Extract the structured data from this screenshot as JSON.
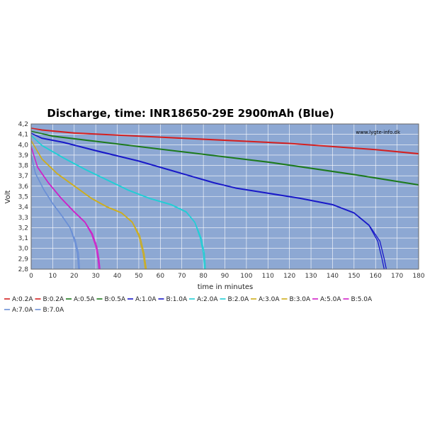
{
  "chart_data": {
    "type": "line",
    "title": "Discharge, time:  INR18650-29E 2900mAh (Blue)",
    "xlabel": "time in minutes",
    "ylabel": "Volt",
    "watermark": "www.lygte-info.dk",
    "xlim": [
      0,
      180
    ],
    "ylim": [
      2.8,
      4.2
    ],
    "xticks": [
      "0",
      "10",
      "20",
      "30",
      "40",
      "50",
      "60",
      "70",
      "80",
      "90",
      "100",
      "110",
      "120",
      "130",
      "140",
      "150",
      "160",
      "170",
      "180"
    ],
    "yticks": [
      "2,8",
      "2,9",
      "3,0",
      "3,1",
      "3,2",
      "3,3",
      "3,4",
      "3,5",
      "3,6",
      "3,7",
      "3,8",
      "3,9",
      "4,0",
      "4,1",
      "4,2"
    ],
    "grid": true,
    "legend_position": "bottom",
    "colors": {
      "plot_bg": "#8da8d3",
      "grid": "#ffffff",
      "red": "#d42020",
      "green": "#1d7a1d",
      "blue": "#1818c8",
      "cyan": "#20cfd5",
      "gold": "#cfae1a",
      "magenta": "#d020c8",
      "lightblue": "#6a8fd6"
    },
    "series": [
      {
        "name": "A:0.2A",
        "color": "#d42020",
        "points": [
          [
            0,
            4.16
          ],
          [
            5,
            4.14
          ],
          [
            20,
            4.11
          ],
          [
            40,
            4.09
          ],
          [
            60,
            4.07
          ],
          [
            80,
            4.05
          ],
          [
            100,
            4.03
          ],
          [
            120,
            4.01
          ],
          [
            140,
            3.98
          ],
          [
            160,
            3.95
          ],
          [
            180,
            3.91
          ]
        ]
      },
      {
        "name": "B:0.2A",
        "color": "#d42020",
        "points": [
          [
            0,
            4.16
          ],
          [
            5,
            4.145
          ],
          [
            20,
            4.115
          ],
          [
            40,
            4.095
          ],
          [
            60,
            4.075
          ],
          [
            80,
            4.055
          ],
          [
            100,
            4.035
          ],
          [
            120,
            4.015
          ],
          [
            140,
            3.985
          ],
          [
            160,
            3.955
          ],
          [
            180,
            3.915
          ]
        ]
      },
      {
        "name": "A:0.5A",
        "color": "#1d7a1d",
        "points": [
          [
            0,
            4.13
          ],
          [
            10,
            4.08
          ],
          [
            30,
            4.03
          ],
          [
            50,
            3.98
          ],
          [
            70,
            3.93
          ],
          [
            90,
            3.88
          ],
          [
            110,
            3.83
          ],
          [
            130,
            3.77
          ],
          [
            150,
            3.71
          ],
          [
            165,
            3.66
          ],
          [
            180,
            3.61
          ]
        ]
      },
      {
        "name": "B:0.5A",
        "color": "#1d7a1d",
        "points": [
          [
            0,
            4.13
          ],
          [
            10,
            4.085
          ],
          [
            30,
            4.035
          ],
          [
            50,
            3.985
          ],
          [
            70,
            3.935
          ],
          [
            90,
            3.885
          ],
          [
            110,
            3.835
          ],
          [
            130,
            3.775
          ],
          [
            150,
            3.715
          ],
          [
            165,
            3.665
          ],
          [
            180,
            3.615
          ]
        ]
      },
      {
        "name": "A:1.0A",
        "color": "#1818c8",
        "points": [
          [
            0,
            4.11
          ],
          [
            5,
            4.06
          ],
          [
            15,
            4.02
          ],
          [
            30,
            3.94
          ],
          [
            50,
            3.84
          ],
          [
            70,
            3.72
          ],
          [
            85,
            3.63
          ],
          [
            95,
            3.58
          ],
          [
            110,
            3.53
          ],
          [
            125,
            3.48
          ],
          [
            140,
            3.42
          ],
          [
            150,
            3.34
          ],
          [
            157,
            3.22
          ],
          [
            161,
            3.07
          ],
          [
            163,
            2.9
          ],
          [
            164,
            2.8
          ]
        ]
      },
      {
        "name": "B:1.0A",
        "color": "#1818c8",
        "points": [
          [
            0,
            4.11
          ],
          [
            5,
            4.065
          ],
          [
            15,
            4.025
          ],
          [
            30,
            3.945
          ],
          [
            50,
            3.845
          ],
          [
            70,
            3.725
          ],
          [
            85,
            3.635
          ],
          [
            95,
            3.585
          ],
          [
            110,
            3.535
          ],
          [
            125,
            3.485
          ],
          [
            140,
            3.425
          ],
          [
            150,
            3.345
          ],
          [
            157,
            3.225
          ],
          [
            162,
            3.07
          ],
          [
            164,
            2.9
          ],
          [
            165,
            2.8
          ]
        ]
      },
      {
        "name": "A:2.0A",
        "color": "#20cfd5",
        "points": [
          [
            0,
            4.09
          ],
          [
            5,
            3.99
          ],
          [
            15,
            3.87
          ],
          [
            25,
            3.76
          ],
          [
            35,
            3.66
          ],
          [
            45,
            3.56
          ],
          [
            55,
            3.48
          ],
          [
            65,
            3.42
          ],
          [
            72,
            3.35
          ],
          [
            76,
            3.25
          ],
          [
            78.5,
            3.1
          ],
          [
            80,
            2.95
          ],
          [
            80.5,
            2.8
          ]
        ]
      },
      {
        "name": "B:2.0A",
        "color": "#20cfd5",
        "points": [
          [
            0,
            4.09
          ],
          [
            5,
            3.995
          ],
          [
            15,
            3.875
          ],
          [
            25,
            3.765
          ],
          [
            35,
            3.665
          ],
          [
            45,
            3.565
          ],
          [
            55,
            3.485
          ],
          [
            65,
            3.425
          ],
          [
            72,
            3.355
          ],
          [
            76,
            3.255
          ],
          [
            79,
            3.1
          ],
          [
            80.5,
            2.95
          ],
          [
            81,
            2.8
          ]
        ]
      },
      {
        "name": "A:3.0A",
        "color": "#cfae1a",
        "points": [
          [
            0,
            4.04
          ],
          [
            5,
            3.86
          ],
          [
            12,
            3.72
          ],
          [
            20,
            3.6
          ],
          [
            28,
            3.48
          ],
          [
            35,
            3.4
          ],
          [
            42,
            3.34
          ],
          [
            47,
            3.25
          ],
          [
            50,
            3.12
          ],
          [
            52,
            2.95
          ],
          [
            53,
            2.8
          ]
        ]
      },
      {
        "name": "B:3.0A",
        "color": "#cfae1a",
        "points": [
          [
            0,
            4.04
          ],
          [
            5,
            3.865
          ],
          [
            12,
            3.725
          ],
          [
            20,
            3.605
          ],
          [
            28,
            3.485
          ],
          [
            35,
            3.405
          ],
          [
            42,
            3.345
          ],
          [
            47,
            3.255
          ],
          [
            50.5,
            3.12
          ],
          [
            52.5,
            2.95
          ],
          [
            53.5,
            2.8
          ]
        ]
      },
      {
        "name": "A:5.0A",
        "color": "#d020c8",
        "points": [
          [
            0,
            3.98
          ],
          [
            3,
            3.78
          ],
          [
            8,
            3.63
          ],
          [
            14,
            3.48
          ],
          [
            20,
            3.35
          ],
          [
            25,
            3.25
          ],
          [
            28,
            3.14
          ],
          [
            30,
            3.02
          ],
          [
            31,
            2.9
          ],
          [
            31.5,
            2.8
          ]
        ]
      },
      {
        "name": "B:5.0A",
        "color": "#d020c8",
        "points": [
          [
            0,
            3.98
          ],
          [
            3,
            3.785
          ],
          [
            8,
            3.635
          ],
          [
            14,
            3.485
          ],
          [
            20,
            3.355
          ],
          [
            25,
            3.255
          ],
          [
            28.5,
            3.14
          ],
          [
            30.5,
            3.02
          ],
          [
            31.5,
            2.9
          ],
          [
            32,
            2.8
          ]
        ]
      },
      {
        "name": "A:7.0A",
        "color": "#6a8fd6",
        "points": [
          [
            0,
            3.9
          ],
          [
            2,
            3.72
          ],
          [
            6,
            3.56
          ],
          [
            10,
            3.43
          ],
          [
            14,
            3.32
          ],
          [
            18,
            3.2
          ],
          [
            20,
            3.08
          ],
          [
            21.5,
            2.95
          ],
          [
            22,
            2.8
          ]
        ]
      },
      {
        "name": "B:7.0A",
        "color": "#6a8fd6",
        "points": [
          [
            0,
            3.9
          ],
          [
            2,
            3.725
          ],
          [
            6,
            3.565
          ],
          [
            10,
            3.435
          ],
          [
            14,
            3.325
          ],
          [
            18,
            3.205
          ],
          [
            20.5,
            3.08
          ],
          [
            22,
            2.95
          ],
          [
            22.5,
            2.8
          ]
        ]
      }
    ]
  }
}
